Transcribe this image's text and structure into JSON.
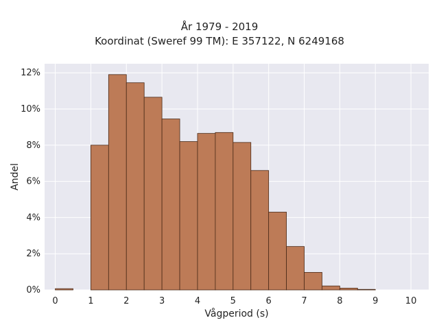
{
  "chart_data": {
    "type": "bar",
    "title": "År 1979 - 2019",
    "subtitle": "Koordinat (Sweref 99 TM): E 357122, N 6249168",
    "xlabel": "Vågperiod (s)",
    "ylabel": "Andel",
    "xlim": [
      -0.3,
      10.5
    ],
    "ylim": [
      0,
      12.5
    ],
    "x_ticks": [
      0,
      1,
      2,
      3,
      4,
      5,
      6,
      7,
      8,
      9,
      10
    ],
    "y_ticks": [
      0,
      2,
      4,
      6,
      8,
      10,
      12
    ],
    "y_tick_suffix": "%",
    "grid": true,
    "bin_width": 0.5,
    "bins": [
      {
        "start": 0.0,
        "value": 0.07
      },
      {
        "start": 0.5,
        "value": 0.0
      },
      {
        "start": 1.0,
        "value": 8.0
      },
      {
        "start": 1.5,
        "value": 11.9
      },
      {
        "start": 2.0,
        "value": 11.45
      },
      {
        "start": 2.5,
        "value": 10.65
      },
      {
        "start": 3.0,
        "value": 9.45
      },
      {
        "start": 3.5,
        "value": 8.2
      },
      {
        "start": 4.0,
        "value": 8.65
      },
      {
        "start": 4.5,
        "value": 8.7
      },
      {
        "start": 5.0,
        "value": 8.15
      },
      {
        "start": 5.5,
        "value": 6.6
      },
      {
        "start": 6.0,
        "value": 4.3
      },
      {
        "start": 6.5,
        "value": 2.4
      },
      {
        "start": 7.0,
        "value": 0.97
      },
      {
        "start": 7.5,
        "value": 0.22
      },
      {
        "start": 8.0,
        "value": 0.1
      },
      {
        "start": 8.5,
        "value": 0.03
      }
    ],
    "colors": {
      "bar_fill": "#BD7B57",
      "bar_stroke": "#4a2a18",
      "plot_bg": "#E8E8F0",
      "grid": "#ffffff"
    }
  }
}
